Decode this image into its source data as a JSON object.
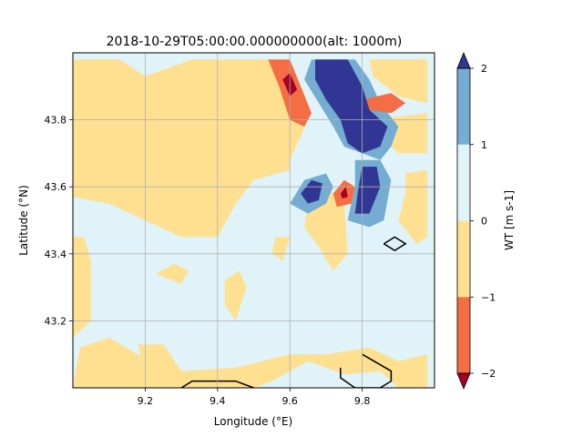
{
  "chart_data": {
    "type": "heatmap",
    "title": "2018-10-29T05:00:00.000000000(alt: 1000m)",
    "xlabel": "Longitude (°E)",
    "ylabel": "Latitude (°N)",
    "xlim": [
      9.0,
      10.0
    ],
    "ylim": [
      43.0,
      44.0
    ],
    "xticks": [
      {
        "value": 9.2,
        "label": "9.2"
      },
      {
        "value": 9.4,
        "label": "9.4"
      },
      {
        "value": 9.6,
        "label": "9.6"
      },
      {
        "value": 9.8,
        "label": "9.8"
      }
    ],
    "yticks": [
      {
        "value": 43.2,
        "label": "43.2"
      },
      {
        "value": 43.4,
        "label": "43.4"
      },
      {
        "value": 43.6,
        "label": "43.6"
      },
      {
        "value": 43.8,
        "label": "43.8"
      }
    ],
    "grid": true,
    "colorbar": {
      "label": "WT [m s-1]",
      "extend": "both",
      "levels": [
        -2,
        -1,
        0,
        1,
        2
      ],
      "tick_labels": [
        "−2",
        "−1",
        "0",
        "1",
        "2"
      ],
      "colors": {
        "under": "#a50026",
        "b_-2_-1": "#f46d43",
        "b_-1_0": "#fee090",
        "b_0_1": "#e0f3f8",
        "b_1_2": "#74add1",
        "over": "#313695"
      }
    },
    "background_band": "b_0_1",
    "regions": [
      {
        "band": "b_-1_0",
        "pts": [
          [
            9.0,
            43.98
          ],
          [
            9.13,
            43.98
          ],
          [
            9.2,
            43.93
          ],
          [
            9.33,
            43.98
          ],
          [
            9.58,
            43.98
          ],
          [
            9.6,
            43.88
          ],
          [
            9.65,
            43.8
          ],
          [
            9.6,
            43.68
          ],
          [
            9.6,
            43.65
          ],
          [
            9.5,
            43.62
          ],
          [
            9.45,
            43.55
          ],
          [
            9.4,
            43.45
          ],
          [
            9.3,
            43.45
          ],
          [
            9.2,
            43.5
          ],
          [
            9.1,
            43.55
          ],
          [
            9.0,
            43.57
          ]
        ]
      },
      {
        "band": "b_-1_0",
        "pts": [
          [
            9.06,
            43.98
          ],
          [
            9.13,
            43.98
          ],
          [
            9.12,
            43.95
          ],
          [
            9.05,
            43.93
          ]
        ]
      },
      {
        "band": "b_-1_0",
        "pts": [
          [
            9.82,
            43.98
          ],
          [
            9.98,
            43.98
          ],
          [
            9.98,
            43.85
          ],
          [
            9.9,
            43.87
          ],
          [
            9.83,
            43.93
          ]
        ]
      },
      {
        "band": "b_-1_0",
        "pts": [
          [
            9.82,
            43.8
          ],
          [
            9.98,
            43.82
          ],
          [
            9.98,
            43.7
          ],
          [
            9.9,
            43.7
          ],
          [
            9.85,
            43.75
          ]
        ]
      },
      {
        "band": "b_-1_0",
        "pts": [
          [
            9.92,
            43.64
          ],
          [
            9.98,
            43.65
          ],
          [
            9.98,
            43.45
          ],
          [
            9.95,
            43.43
          ],
          [
            9.9,
            43.5
          ],
          [
            9.92,
            43.58
          ]
        ]
      },
      {
        "band": "b_-1_0",
        "pts": [
          [
            9.65,
            43.55
          ],
          [
            9.7,
            43.6
          ],
          [
            9.75,
            43.55
          ],
          [
            9.76,
            43.4
          ],
          [
            9.72,
            43.35
          ],
          [
            9.68,
            43.42
          ],
          [
            9.64,
            43.48
          ]
        ]
      },
      {
        "band": "b_-1_0",
        "pts": [
          [
            9.56,
            43.45
          ],
          [
            9.6,
            43.45
          ],
          [
            9.58,
            43.38
          ],
          [
            9.55,
            43.4
          ]
        ]
      },
      {
        "band": "b_-1_0",
        "pts": [
          [
            9.23,
            43.34
          ],
          [
            9.28,
            43.37
          ],
          [
            9.32,
            43.35
          ],
          [
            9.3,
            43.31
          ]
        ]
      },
      {
        "band": "b_-1_0",
        "pts": [
          [
            9.42,
            43.32
          ],
          [
            9.46,
            43.35
          ],
          [
            9.48,
            43.3
          ],
          [
            9.45,
            43.2
          ],
          [
            9.42,
            43.25
          ]
        ]
      },
      {
        "band": "b_-1_0",
        "pts": [
          [
            9.0,
            43.45
          ],
          [
            9.03,
            43.45
          ],
          [
            9.05,
            43.38
          ],
          [
            9.05,
            43.2
          ],
          [
            9.0,
            43.15
          ]
        ]
      },
      {
        "band": "b_-1_0",
        "pts": [
          [
            9.0,
            43.0
          ],
          [
            9.5,
            43.0
          ],
          [
            9.55,
            43.02
          ],
          [
            9.6,
            43.05
          ],
          [
            9.65,
            43.08
          ],
          [
            9.7,
            43.06
          ],
          [
            9.75,
            43.04
          ],
          [
            9.85,
            43.05
          ],
          [
            9.9,
            43.0
          ],
          [
            9.98,
            43.0
          ],
          [
            9.98,
            43.1
          ],
          [
            9.9,
            43.08
          ],
          [
            9.82,
            43.12
          ],
          [
            9.7,
            43.1
          ],
          [
            9.6,
            43.1
          ],
          [
            9.45,
            43.06
          ],
          [
            9.3,
            43.05
          ],
          [
            9.18,
            43.1
          ],
          [
            9.1,
            43.15
          ],
          [
            9.02,
            43.12
          ]
        ]
      },
      {
        "band": "b_-1_0",
        "pts": [
          [
            9.18,
            43.13
          ],
          [
            9.25,
            43.13
          ],
          [
            9.3,
            43.05
          ],
          [
            9.2,
            43.05
          ]
        ]
      },
      {
        "band": "b_1_2",
        "pts": [
          [
            9.66,
            43.98
          ],
          [
            9.78,
            43.98
          ],
          [
            9.82,
            43.92
          ],
          [
            9.85,
            43.85
          ],
          [
            9.9,
            43.78
          ],
          [
            9.88,
            43.72
          ],
          [
            9.85,
            43.68
          ],
          [
            9.8,
            43.7
          ],
          [
            9.75,
            43.72
          ],
          [
            9.72,
            43.78
          ],
          [
            9.68,
            43.85
          ],
          [
            9.64,
            43.92
          ]
        ]
      },
      {
        "band": "b_1_2",
        "pts": [
          [
            9.78,
            43.68
          ],
          [
            9.85,
            43.68
          ],
          [
            9.88,
            43.62
          ],
          [
            9.86,
            43.5
          ],
          [
            9.82,
            43.48
          ],
          [
            9.76,
            43.5
          ],
          [
            9.78,
            43.6
          ]
        ]
      },
      {
        "band": "b_1_2",
        "pts": [
          [
            9.6,
            43.55
          ],
          [
            9.64,
            43.62
          ],
          [
            9.7,
            43.64
          ],
          [
            9.72,
            43.6
          ],
          [
            9.7,
            43.55
          ],
          [
            9.65,
            43.52
          ]
        ]
      },
      {
        "band": "b_-2_-1",
        "pts": [
          [
            9.54,
            43.98
          ],
          [
            9.6,
            43.98
          ],
          [
            9.63,
            43.9
          ],
          [
            9.66,
            43.82
          ],
          [
            9.64,
            43.78
          ],
          [
            9.6,
            43.8
          ],
          [
            9.57,
            43.9
          ]
        ]
      },
      {
        "band": "b_-2_-1",
        "pts": [
          [
            9.8,
            43.86
          ],
          [
            9.88,
            43.88
          ],
          [
            9.92,
            43.85
          ],
          [
            9.88,
            43.82
          ],
          [
            9.82,
            43.83
          ]
        ]
      },
      {
        "band": "b_-2_-1",
        "pts": [
          [
            9.72,
            43.58
          ],
          [
            9.75,
            43.62
          ],
          [
            9.78,
            43.6
          ],
          [
            9.77,
            43.55
          ],
          [
            9.73,
            43.54
          ]
        ]
      },
      {
        "band": "over",
        "pts": [
          [
            9.67,
            43.98
          ],
          [
            9.76,
            43.98
          ],
          [
            9.8,
            43.9
          ],
          [
            9.82,
            43.83
          ],
          [
            9.87,
            43.78
          ],
          [
            9.85,
            43.72
          ],
          [
            9.8,
            43.7
          ],
          [
            9.76,
            43.73
          ],
          [
            9.74,
            43.8
          ],
          [
            9.7,
            43.86
          ],
          [
            9.67,
            43.92
          ]
        ]
      },
      {
        "band": "over",
        "pts": [
          [
            9.8,
            43.66
          ],
          [
            9.84,
            43.66
          ],
          [
            9.85,
            43.6
          ],
          [
            9.82,
            43.52
          ],
          [
            9.78,
            43.52
          ],
          [
            9.79,
            43.6
          ]
        ]
      },
      {
        "band": "over",
        "pts": [
          [
            9.63,
            43.58
          ],
          [
            9.66,
            43.62
          ],
          [
            9.69,
            43.61
          ],
          [
            9.68,
            43.56
          ],
          [
            9.65,
            43.55
          ]
        ]
      },
      {
        "band": "under",
        "pts": [
          [
            9.58,
            43.92
          ],
          [
            9.6,
            43.94
          ],
          [
            9.62,
            43.89
          ],
          [
            9.6,
            43.87
          ]
        ]
      },
      {
        "band": "under",
        "pts": [
          [
            9.74,
            43.58
          ],
          [
            9.755,
            43.6
          ],
          [
            9.76,
            43.57
          ],
          [
            9.745,
            43.565
          ]
        ]
      }
    ],
    "outlines": [
      [
        [
          9.3,
          43.0
        ],
        [
          9.33,
          43.02
        ],
        [
          9.45,
          43.02
        ],
        [
          9.5,
          43.0
        ]
      ],
      [
        [
          9.8,
          43.1
        ],
        [
          9.88,
          43.05
        ],
        [
          9.88,
          43.02
        ],
        [
          9.85,
          43.0
        ],
        [
          9.78,
          43.0
        ],
        [
          9.74,
          43.03
        ],
        [
          9.74,
          43.06
        ]
      ],
      [
        [
          9.86,
          43.43
        ],
        [
          9.89,
          43.45
        ],
        [
          9.92,
          43.43
        ],
        [
          9.89,
          43.41
        ],
        [
          9.86,
          43.43
        ]
      ]
    ]
  }
}
